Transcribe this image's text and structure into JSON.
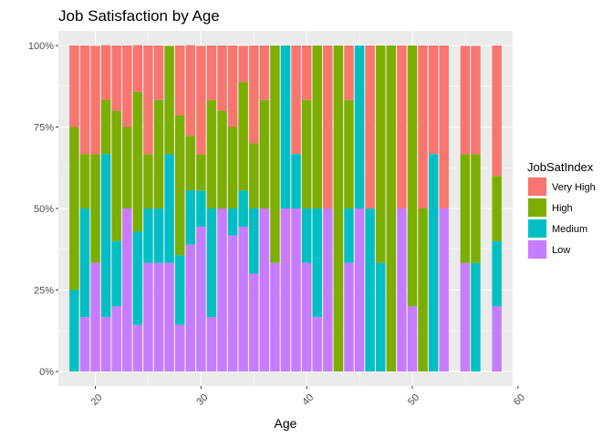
{
  "chart_data": {
    "type": "bar",
    "stacked": "fill",
    "title": "Job Satisfaction by Age",
    "xlabel": "Age",
    "ylabel": "",
    "xlim": [
      16.5,
      59.5
    ],
    "ylim": [
      0,
      1
    ],
    "x_ticks": [
      20,
      30,
      40,
      50,
      60
    ],
    "x_tick_labels": [
      "20",
      "30",
      "40",
      "50",
      "60"
    ],
    "y_ticks": [
      0,
      0.25,
      0.5,
      0.75,
      1
    ],
    "y_tick_labels": [
      "0%",
      "25%",
      "50%",
      "75%",
      "100%"
    ],
    "grid": true,
    "legend": {
      "title": "JobSatIndex",
      "placement": "right",
      "entries": [
        {
          "name": "Very High",
          "color": "#F8766D"
        },
        {
          "name": "High",
          "color": "#7CAE00"
        },
        {
          "name": "Medium",
          "color": "#00BFC4"
        },
        {
          "name": "Low",
          "color": "#C77CFF"
        }
      ]
    },
    "series_order_bottom_to_top": [
      "Low",
      "Medium",
      "High",
      "Very High"
    ],
    "x": [
      18,
      19,
      20,
      21,
      22,
      23,
      24,
      25,
      26,
      27,
      28,
      29,
      30,
      31,
      32,
      33,
      34,
      35,
      36,
      37,
      38,
      39,
      40,
      41,
      42,
      43,
      44,
      45,
      46,
      47,
      48,
      49,
      50,
      51,
      52,
      53,
      55,
      56,
      58
    ],
    "series": [
      {
        "name": "Low",
        "values": [
          0,
          0.167,
          0.333,
          0.167,
          0.2,
          0.5,
          0.143,
          0.333,
          0.333,
          0.333,
          0.143,
          0.389,
          0.444,
          0.167,
          0.5,
          0.417,
          0.444,
          0.3,
          0.5,
          0.333,
          0.5,
          0.5,
          0.333,
          0.167,
          0.5,
          0,
          0.333,
          0.5,
          0,
          0,
          0,
          0.5,
          0.2,
          0,
          0,
          0.5,
          0.333,
          0,
          0.2
        ]
      },
      {
        "name": "Medium",
        "values": [
          0.25,
          0.333,
          0,
          0.5,
          0.2,
          0,
          0.286,
          0.167,
          0.167,
          0.333,
          0.214,
          0.167,
          0.111,
          0.333,
          0,
          0.083,
          0.111,
          0.2,
          0,
          0,
          0.5,
          0.167,
          0.167,
          0.333,
          0,
          0,
          0.167,
          0.5,
          0.5,
          0.333,
          0,
          0,
          0,
          0,
          0.667,
          0,
          0,
          0.333,
          0.2
        ]
      },
      {
        "name": "High",
        "values": [
          0.5,
          0.167,
          0.333,
          0.167,
          0.4,
          0.25,
          0.429,
          0.167,
          0.333,
          0.333,
          0.429,
          0.167,
          0.111,
          0.333,
          0.3,
          0.25,
          0.333,
          0.2,
          0.333,
          0.667,
          0,
          0,
          0.333,
          0.5,
          0,
          1,
          0.333,
          0,
          0,
          0.667,
          1,
          0,
          0.8,
          0.5,
          0,
          0,
          0.333,
          0.333,
          0.2
        ]
      },
      {
        "name": "Very High",
        "values": [
          0.25,
          0.333,
          0.333,
          0.167,
          0.2,
          0.25,
          0.143,
          0.333,
          0.167,
          0,
          0.214,
          0.278,
          0.333,
          0.167,
          0.2,
          0.25,
          0.111,
          0.3,
          0.167,
          0,
          0,
          0.333,
          0.167,
          0,
          0.5,
          0,
          0.167,
          0,
          0.5,
          0,
          0,
          0.5,
          0,
          0.5,
          0.333,
          0.5,
          0.333,
          0.333,
          0.4
        ]
      }
    ]
  }
}
